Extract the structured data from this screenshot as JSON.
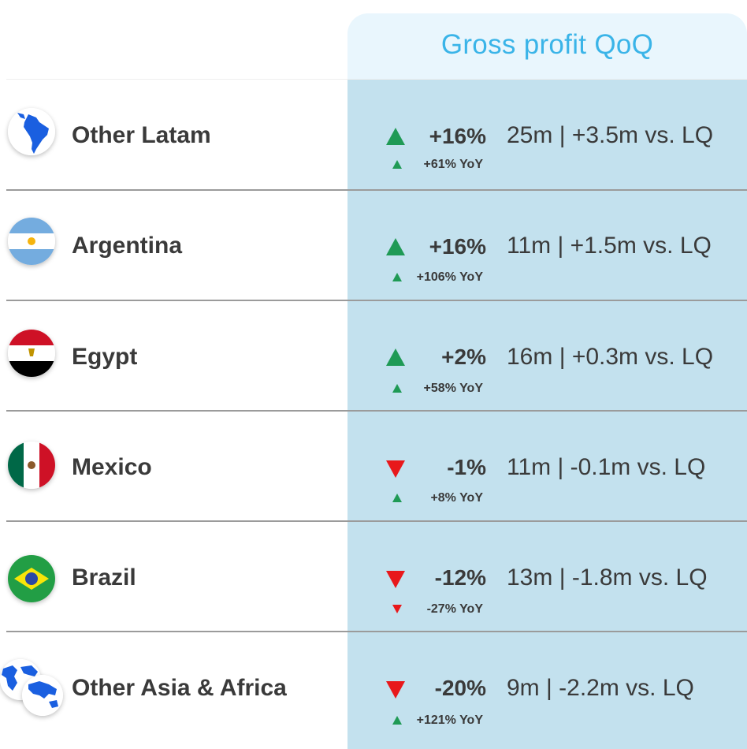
{
  "header": {
    "title": "Gross profit QoQ"
  },
  "colors": {
    "up": "#1f9a55",
    "down": "#e8181b",
    "header_text": "#3ab4e8",
    "column_bg": "#c3e1ee"
  },
  "rows": [
    {
      "country": "Other Latam",
      "icon": "latam-globe-icon",
      "direction": "up",
      "pct": "+16%",
      "detail": "25m | +3.5m vs. LQ",
      "yoy_direction": "up",
      "yoy": "+61% YoY"
    },
    {
      "country": "Argentina",
      "icon": "argentina-flag-icon",
      "direction": "up",
      "pct": "+16%",
      "detail": "11m | +1.5m vs. LQ",
      "yoy_direction": "up",
      "yoy": "+106% YoY"
    },
    {
      "country": "Egypt",
      "icon": "egypt-flag-icon",
      "direction": "up",
      "pct": "+2%",
      "detail": "16m | +0.3m vs. LQ",
      "yoy_direction": "up",
      "yoy": "+58% YoY"
    },
    {
      "country": "Mexico",
      "icon": "mexico-flag-icon",
      "direction": "down",
      "pct": "-1%",
      "detail": "11m | -0.1m vs. LQ",
      "yoy_direction": "up",
      "yoy": "+8% YoY"
    },
    {
      "country": "Brazil",
      "icon": "brazil-flag-icon",
      "direction": "down",
      "pct": "-12%",
      "detail": "13m | -1.8m vs. LQ",
      "yoy_direction": "down",
      "yoy": "-27% YoY"
    },
    {
      "country": "Other Asia & Africa",
      "icon": "asia-africa-globe-icon",
      "direction": "down",
      "pct": "-20%",
      "detail": "9m | -2.2m vs. LQ",
      "yoy_direction": "up",
      "yoy": "+121% YoY"
    }
  ]
}
